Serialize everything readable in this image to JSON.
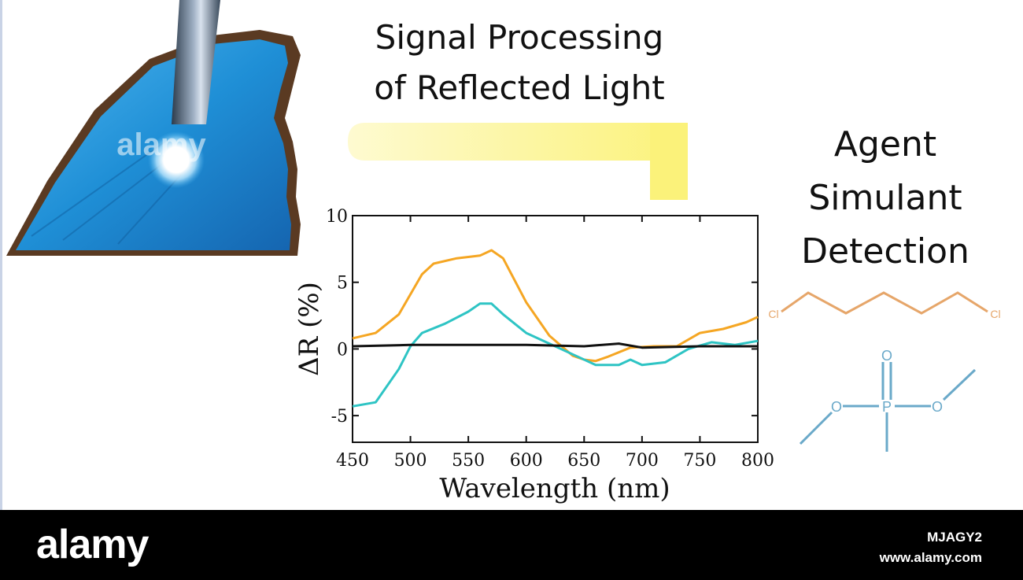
{
  "title": {
    "line1": "Signal Processing",
    "line2": "of Reflected Light"
  },
  "agent_label": {
    "line1": "Agent",
    "line2": "Simulant",
    "line3": "Detection"
  },
  "molecule": {
    "chloro_left": "Cl",
    "chloro_right": "Cl",
    "phosphorus": "P",
    "oxygen_top": "O",
    "oxygen_left": "O",
    "oxygen_right": "O"
  },
  "colors": {
    "orange": "#f5a623",
    "cyan": "#2ec4c4",
    "black": "#111111",
    "molecule_orange": "#e6a66a",
    "molecule_blue": "#6aa9c9",
    "wing_blue": "#1f8fd6",
    "arrow_yellow": "#fbf27a"
  },
  "watermark": {
    "wing": "alamy",
    "logo": "alamy",
    "image_id": "MJAGY2",
    "site": "www.alamy.com"
  },
  "chart_data": {
    "type": "line",
    "xlabel": "Wavelength (nm)",
    "ylabel": "ΔR (%)",
    "xlim": [
      450,
      800
    ],
    "ylim": [
      -7,
      10
    ],
    "x_ticks": [
      "450",
      "500",
      "550",
      "600",
      "650",
      "700",
      "750",
      "800"
    ],
    "y_ticks": [
      "10",
      "5",
      "0",
      "-5"
    ],
    "series": [
      {
        "color": "orange",
        "x": [
          450,
          470,
          490,
          510,
          520,
          540,
          560,
          570,
          580,
          600,
          620,
          640,
          650,
          660,
          670,
          690,
          710,
          730,
          750,
          770,
          790,
          800
        ],
        "y": [
          0.8,
          1.2,
          2.6,
          5.6,
          6.4,
          6.8,
          7.0,
          7.4,
          6.8,
          3.5,
          1.0,
          -0.5,
          -0.8,
          -0.9,
          -0.6,
          0.1,
          0.2,
          0.2,
          1.2,
          1.5,
          2.0,
          2.4
        ]
      },
      {
        "color": "cyan",
        "x": [
          450,
          470,
          490,
          500,
          510,
          530,
          550,
          560,
          570,
          580,
          600,
          620,
          640,
          660,
          680,
          690,
          700,
          720,
          740,
          760,
          780,
          800
        ],
        "y": [
          -4.3,
          -4.0,
          -1.5,
          0.2,
          1.2,
          1.9,
          2.8,
          3.4,
          3.4,
          2.6,
          1.2,
          0.4,
          -0.4,
          -1.2,
          -1.2,
          -0.8,
          -1.2,
          -1.0,
          0.0,
          0.5,
          0.3,
          0.6
        ]
      },
      {
        "color": "black",
        "x": [
          450,
          500,
          550,
          600,
          650,
          680,
          700,
          750,
          800
        ],
        "y": [
          0.2,
          0.3,
          0.3,
          0.3,
          0.2,
          0.4,
          0.1,
          0.2,
          0.2
        ]
      }
    ]
  }
}
